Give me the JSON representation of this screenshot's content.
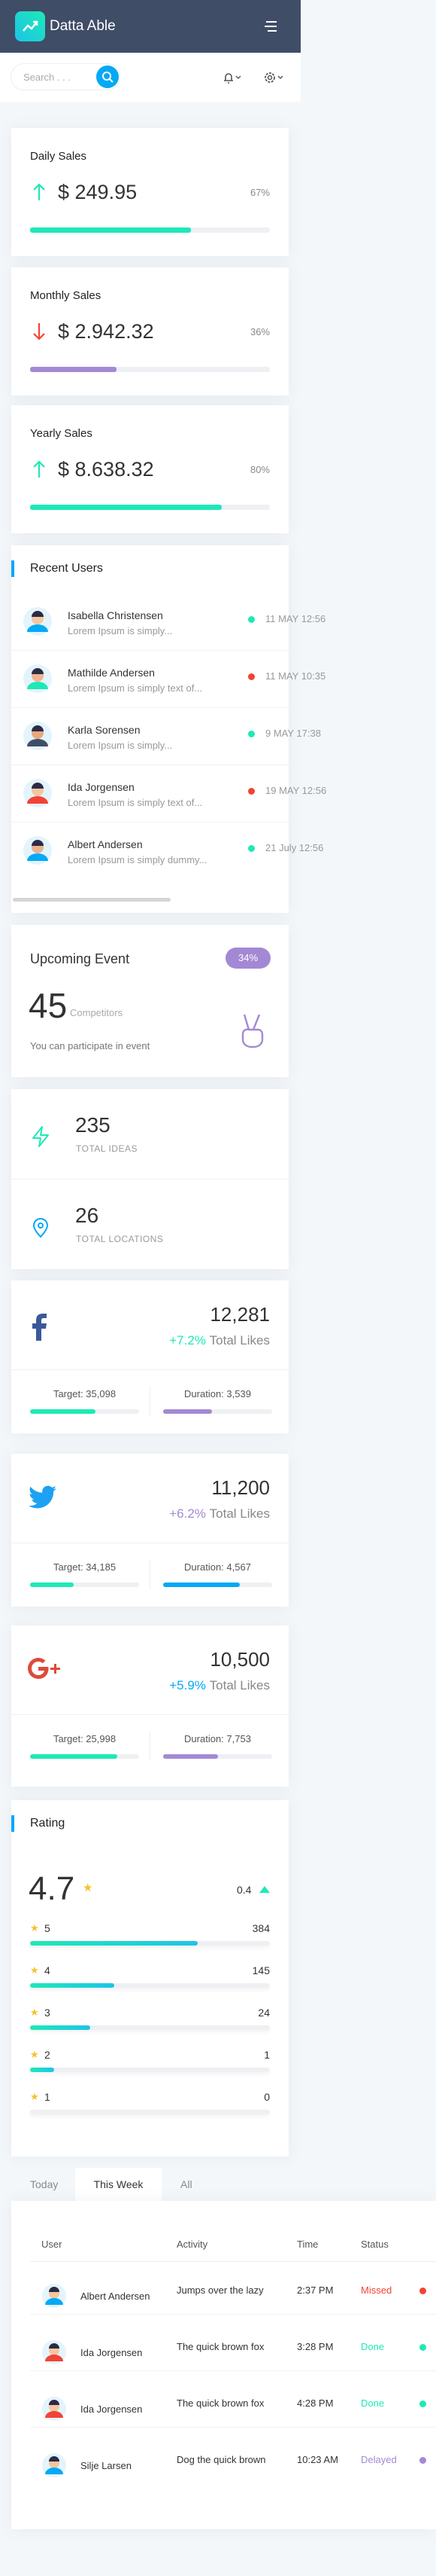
{
  "header": {
    "brand": "Datta Able",
    "search_placeholder": "Search . . ."
  },
  "sales": [
    {
      "title": "Daily Sales",
      "amount": "$ 249.95",
      "trend": "up",
      "percent": {
        "value": 67,
        "label": "67%"
      },
      "color": "#1de9b6"
    },
    {
      "title": "Monthly Sales",
      "amount": "$ 2.942.32",
      "trend": "down",
      "percent": {
        "value": 36,
        "label": "36%"
      },
      "color": "#a389d4"
    },
    {
      "title": "Yearly Sales",
      "amount": "$ 8.638.32",
      "trend": "up",
      "percent": {
        "value": 80,
        "label": "80%"
      },
      "color": "#1de9b6"
    }
  ],
  "recent_users": {
    "title": "Recent Users",
    "rows": [
      {
        "name": "Isabella Christensen",
        "text": "Lorem Ipsum is simply...",
        "date": "11 MAY 12:56",
        "status": "green"
      },
      {
        "name": "Mathilde Andersen",
        "text": "Lorem Ipsum is simply text of...",
        "date": "11 MAY 10:35",
        "status": "red"
      },
      {
        "name": "Karla Sorensen",
        "text": "Lorem Ipsum is simply...",
        "date": "9 MAY 17:38",
        "status": "green"
      },
      {
        "name": "Ida Jorgensen",
        "text": "Lorem Ipsum is simply text of...",
        "date": "19 MAY 12:56",
        "status": "red"
      },
      {
        "name": "Albert Andersen",
        "text": "Lorem Ipsum is simply dummy...",
        "date": "21 July 12:56",
        "status": "green"
      }
    ]
  },
  "event": {
    "title": "Upcoming Event",
    "badge": "34%",
    "count": "45",
    "count_label": "Competitors",
    "text": "You can participate in event"
  },
  "totals": [
    {
      "value": "235",
      "label": "TOTAL IDEAS"
    },
    {
      "value": "26",
      "label": "TOTAL LOCATIONS"
    }
  ],
  "social": [
    {
      "network": "facebook",
      "likes": "12,281",
      "change": "+7.2%",
      "change_color": "#1de9b6",
      "likes_label": "Total Likes",
      "target": "Target: 35,098",
      "duration": "Duration: 3,539",
      "target_bar": 60,
      "duration_bar": 45
    },
    {
      "network": "twitter",
      "likes": "11,200",
      "change": "+6.2%",
      "change_color": "#a389d4",
      "likes_label": "Total Likes",
      "target": "Target: 34,185",
      "duration": "Duration: 4,567",
      "target_bar": 40,
      "duration_bar": 70
    },
    {
      "network": "google",
      "likes": "10,500",
      "change": "+5.9%",
      "change_color": "#04a9f5",
      "likes_label": "Total Likes",
      "target": "Target: 25,998",
      "duration": "Duration: 7,753",
      "target_bar": 80,
      "duration_bar": 50
    }
  ],
  "rating": {
    "title": "Rating",
    "score": "4.7",
    "change": "0.4",
    "rows": [
      {
        "stars": "5",
        "count": "384",
        "bar": 70
      },
      {
        "stars": "4",
        "count": "145",
        "bar": 35
      },
      {
        "stars": "3",
        "count": "24",
        "bar": 25
      },
      {
        "stars": "2",
        "count": "1",
        "bar": 10
      },
      {
        "stars": "1",
        "count": "0",
        "bar": 0
      }
    ]
  },
  "tabs": [
    "Today",
    "This Week",
    "All"
  ],
  "table": {
    "columns": [
      "User",
      "Activity",
      "Time",
      "Status"
    ],
    "rows": [
      [
        "Albert Andersen",
        "Jumps over the lazy",
        "2:37 PM",
        "Missed"
      ],
      [
        "Ida Jorgensen",
        "The quick brown fox",
        "3:28 PM",
        "Done"
      ],
      [
        "Ida Jorgensen",
        "The quick brown fox",
        "4:28 PM",
        "Done"
      ],
      [
        "Silje Larsen",
        "Dog the quick brown",
        "10:23 AM",
        "Delayed"
      ]
    ]
  }
}
